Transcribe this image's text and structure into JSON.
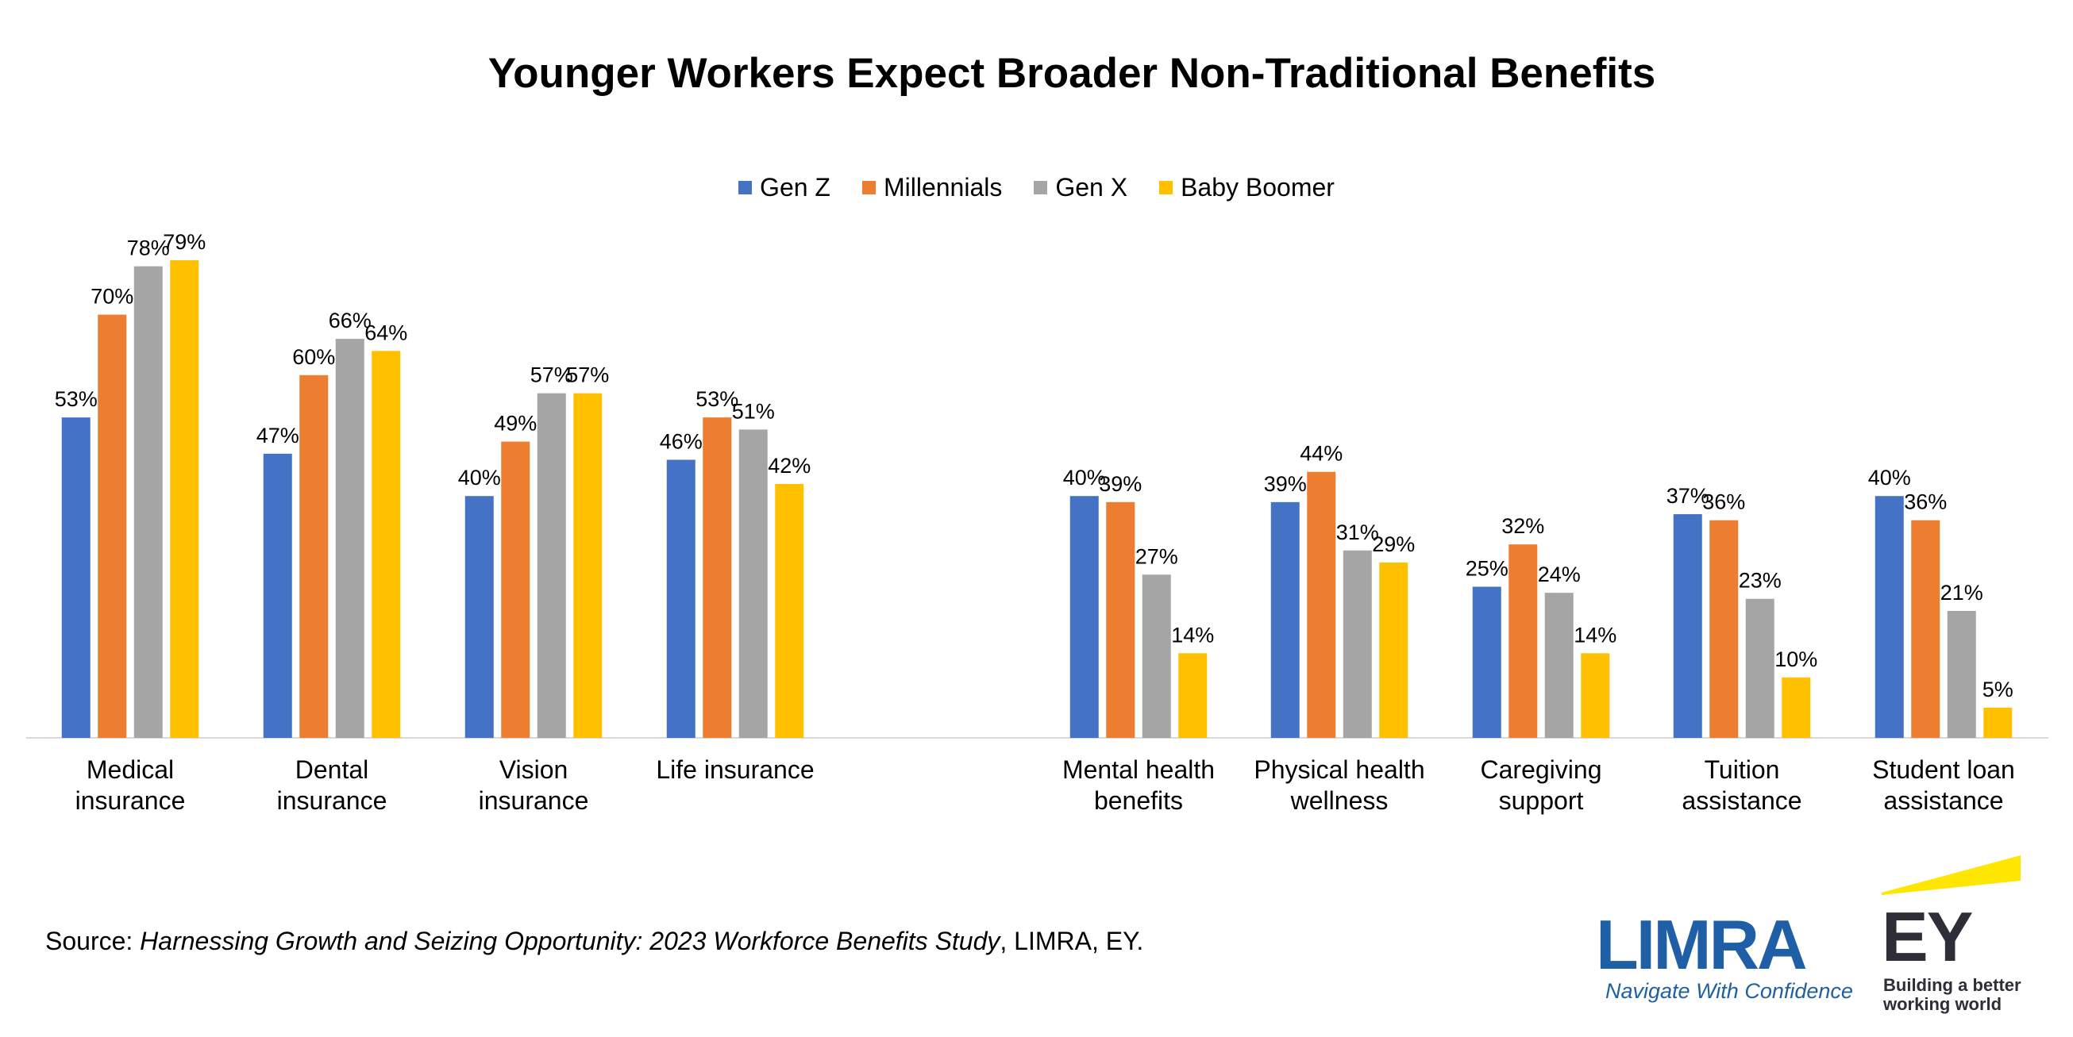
{
  "chart_data": {
    "type": "bar",
    "title": "Younger Workers Expect Broader Non-Traditional Benefits",
    "xlabel": "",
    "ylabel": "",
    "ylim": [
      0,
      85
    ],
    "grid": false,
    "legend_position": "top-center",
    "categories": [
      "Medical insurance",
      "Dental insurance",
      "Vision insurance",
      "Life insurance",
      "Mental health benefits",
      "Physical health wellness",
      "Caregiving support",
      "Tuition assistance",
      "Student loan assistance"
    ],
    "category_label_lines": [
      [
        "Medical",
        "insurance"
      ],
      [
        "Dental",
        "insurance"
      ],
      [
        "Vision",
        "insurance"
      ],
      [
        "Life insurance"
      ],
      [
        "Mental health",
        "benefits"
      ],
      [
        "Physical health",
        "wellness"
      ],
      [
        "Caregiving",
        "support"
      ],
      [
        "Tuition",
        "assistance"
      ],
      [
        "Student loan",
        "assistance"
      ]
    ],
    "series": [
      {
        "name": "Gen Z",
        "color": "#4472C4",
        "values": [
          53,
          47,
          40,
          46,
          40,
          39,
          25,
          37,
          40
        ]
      },
      {
        "name": "Millennials",
        "color": "#ED7D31",
        "values": [
          70,
          60,
          49,
          53,
          39,
          44,
          32,
          36,
          36
        ]
      },
      {
        "name": "Gen X",
        "color": "#A5A5A5",
        "values": [
          78,
          66,
          57,
          51,
          27,
          31,
          24,
          23,
          21
        ]
      },
      {
        "name": "Baby Boomer",
        "color": "#FFC000",
        "values": [
          79,
          64,
          57,
          42,
          14,
          29,
          14,
          10,
          5
        ]
      }
    ],
    "value_format": "{v}%"
  },
  "source": {
    "prefix": "Source: ",
    "italic": "Harnessing Growth and Seizing Opportunity: 2023 Workforce Benefits Study",
    "suffix": ", LIMRA, EY."
  },
  "logos": {
    "limra": {
      "word": "LIMRA",
      "tagline": "Navigate With Confidence",
      "color": "#1F5FA6"
    },
    "ey": {
      "word": "EY",
      "tagline": "Building a better\nworking world",
      "color": "#2E2E38",
      "accent": "#FFE600"
    }
  }
}
